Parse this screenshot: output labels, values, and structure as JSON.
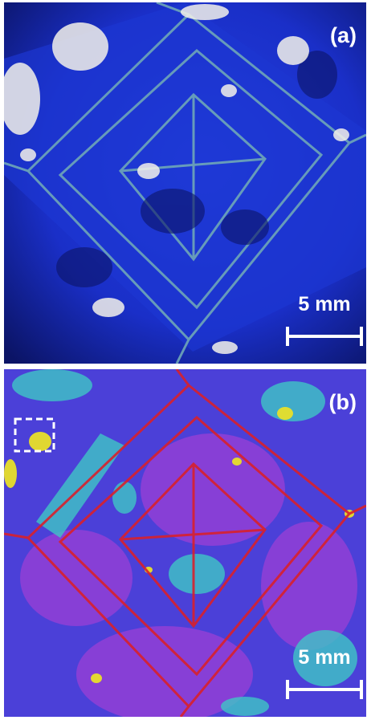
{
  "panels": [
    {
      "label": "(a)",
      "scale": "5 mm",
      "style": "photograph",
      "colors": {
        "base": "#1a2fc8",
        "deep": "#0b1466",
        "grout": "#6fa7b8",
        "inclusion": "#f3f1ea"
      }
    },
    {
      "label": "(b)",
      "scale": "5 mm",
      "style": "false-color map",
      "colors": {
        "base": "#4b40d8",
        "purple": "#9b3fd6",
        "cyan": "#3fc6c6",
        "yellow": "#e8e02a",
        "boundary": "#d8202c",
        "box": "#ffffff"
      }
    }
  ]
}
